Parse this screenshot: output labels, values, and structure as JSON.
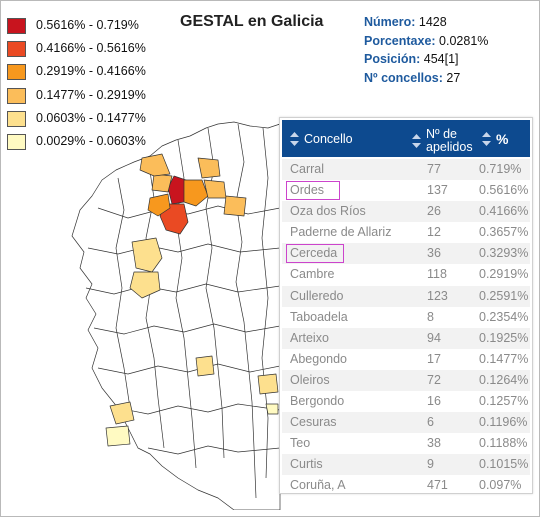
{
  "title": "GESTAL en Galicia",
  "legend": [
    {
      "label": "0.5616% - 0.719%",
      "color": "#c8141e"
    },
    {
      "label": "0.4166% - 0.5616%",
      "color": "#ea4a23"
    },
    {
      "label": "0.2919% - 0.4166%",
      "color": "#f7981e"
    },
    {
      "label": "0.1477% - 0.2919%",
      "color": "#fbbd5a"
    },
    {
      "label": "0.0603% - 0.1477%",
      "color": "#fde08e"
    },
    {
      "label": "0.0029% - 0.0603%",
      "color": "#fffac2"
    }
  ],
  "stats": [
    {
      "key": "Número:",
      "value": "1428"
    },
    {
      "key": "Porcentaxe:",
      "value": "0.0281%"
    },
    {
      "key": "Posición:",
      "value": "454[1]"
    },
    {
      "key": "Nº concellos:",
      "value": "27"
    }
  ],
  "table": {
    "headers": {
      "concello": "Concello",
      "num": "Nº de apelidos",
      "pct": "%"
    },
    "rows": [
      {
        "concello": "Carral",
        "num": "77",
        "pct": "0.719%"
      },
      {
        "concello": "Ordes",
        "num": "137",
        "pct": "0.5616%"
      },
      {
        "concello": "Oza dos Ríos",
        "num": "26",
        "pct": "0.4166%"
      },
      {
        "concello": "Paderne de Allariz",
        "num": "12",
        "pct": "0.3657%"
      },
      {
        "concello": "Cerceda",
        "num": "36",
        "pct": "0.3293%"
      },
      {
        "concello": "Cambre",
        "num": "118",
        "pct": "0.2919%"
      },
      {
        "concello": "Culleredo",
        "num": "123",
        "pct": "0.2591%"
      },
      {
        "concello": "Taboadela",
        "num": "8",
        "pct": "0.2354%"
      },
      {
        "concello": "Arteixo",
        "num": "94",
        "pct": "0.1925%"
      },
      {
        "concello": "Abegondo",
        "num": "17",
        "pct": "0.1477%"
      },
      {
        "concello": "Oleiros",
        "num": "72",
        "pct": "0.1264%"
      },
      {
        "concello": "Bergondo",
        "num": "16",
        "pct": "0.1257%"
      },
      {
        "concello": "Cesuras",
        "num": "6",
        "pct": "0.1196%"
      },
      {
        "concello": "Teo",
        "num": "38",
        "pct": "0.1188%"
      },
      {
        "concello": "Curtis",
        "num": "9",
        "pct": "0.1015%"
      },
      {
        "concello": "Coruña, A",
        "num": "471",
        "pct": "0.097%"
      }
    ]
  },
  "colors": {
    "header": "#0d4a8f",
    "stat_key": "#1e5a9e",
    "highlight": "#cc44cc"
  }
}
